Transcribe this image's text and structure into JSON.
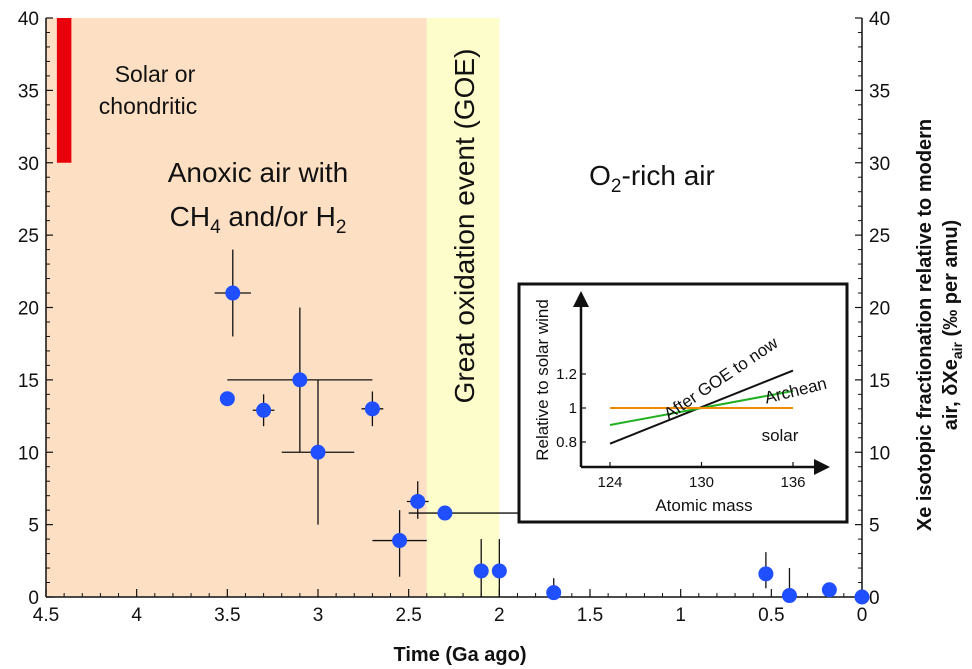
{
  "chart_data": {
    "type": "scatter",
    "title": "",
    "xlabel": "Time (Ga ago)",
    "ylabel_right_line1": "Xe isotopic fractionation relative to modern",
    "ylabel_right_line2_prefix": "air, δXe",
    "ylabel_right_line2_sub": "air",
    "ylabel_right_line2_suffix": " (‰ per amu)",
    "xlim": [
      4.5,
      0
    ],
    "ylim": [
      0,
      40
    ],
    "x_ticks": [
      "4.5",
      "4",
      "3.5",
      "3",
      "2.5",
      "2",
      "1.5",
      "1",
      "0.5",
      "0"
    ],
    "y_ticks": [
      "0",
      "5",
      "10",
      "15",
      "20",
      "25",
      "30",
      "35",
      "40"
    ],
    "regions": {
      "anoxic": {
        "x_from": 4.5,
        "x_to": 2.4,
        "color": "#fde0c4"
      },
      "goe": {
        "x_from": 2.4,
        "x_to": 2.0,
        "color": "#fdfccb"
      }
    },
    "labels": {
      "solar_line1": "Solar or",
      "solar_line2": "chondritic",
      "anoxic_line1": "Anoxic air with",
      "anoxic_line2_a": "CH",
      "anoxic_line2_sub1": "4",
      "anoxic_line2_b": " and/or H",
      "anoxic_line2_sub2": "2",
      "goe": "Great oxidation event (GOE)",
      "o2_a": "O",
      "o2_sub": "2",
      "o2_b": "-rich air"
    },
    "solar_bar": {
      "x_from": 4.44,
      "x_to": 4.36,
      "y_from": 30,
      "y_to": 40,
      "color": "#e8000b"
    },
    "marker_color": "#1f4fff",
    "points": [
      {
        "x": 3.47,
        "y": 21,
        "xerr": [
          3.57,
          3.37
        ],
        "yerr": [
          18,
          24
        ]
      },
      {
        "x": 3.5,
        "y": 13.7
      },
      {
        "x": 3.3,
        "y": 12.9,
        "xerr": [
          3.36,
          3.24
        ],
        "yerr": [
          11.8,
          14.0
        ]
      },
      {
        "x": 3.1,
        "y": 15,
        "xerr": [
          3.5,
          2.7
        ],
        "yerr": [
          10,
          20
        ]
      },
      {
        "x": 3.0,
        "y": 10,
        "xerr": [
          3.2,
          2.8
        ],
        "yerr": [
          5,
          15
        ]
      },
      {
        "x": 2.7,
        "y": 13,
        "xerr": [
          2.76,
          2.64
        ],
        "yerr": [
          11.8,
          14.2
        ]
      },
      {
        "x": 2.55,
        "y": 3.9,
        "xerr": [
          2.7,
          2.4
        ],
        "yerr": [
          1.4,
          6.0
        ]
      },
      {
        "x": 2.45,
        "y": 6.6,
        "xerr": [
          2.51,
          2.39
        ],
        "yerr": [
          5.4,
          8.0
        ]
      },
      {
        "x": 2.3,
        "y": 5.8,
        "xerr": [
          2.5,
          1.9
        ]
      },
      {
        "x": 2.1,
        "y": 1.8,
        "yerr": [
          0,
          4
        ]
      },
      {
        "x": 2.0,
        "y": 1.8,
        "yerr": [
          0,
          4
        ]
      },
      {
        "x": 1.7,
        "y": 0.3,
        "yerr": [
          0,
          1.3
        ]
      },
      {
        "x": 0.53,
        "y": 1.6,
        "yerr": [
          0.6,
          3.1
        ]
      },
      {
        "x": 0.4,
        "y": 0.1,
        "yerr": [
          0,
          2
        ]
      },
      {
        "x": 0.18,
        "y": 0.5,
        "yerr": [
          0,
          1.0
        ]
      },
      {
        "x": 0.0,
        "y": 0.0
      }
    ],
    "inset": {
      "ylabel": "Relative to solar wind",
      "xlabel": "Atomic mass",
      "x_ticks": [
        "124",
        "130",
        "136"
      ],
      "y_ticks": [
        "0.8",
        "1",
        "1.2"
      ],
      "xlim": [
        124,
        136
      ],
      "ylim": [
        0.8,
        1.2
      ],
      "series": [
        {
          "name": "After GOE to now",
          "color": "#111111",
          "values": [
            [
              124,
              0.79
            ],
            [
              136,
              1.22
            ]
          ]
        },
        {
          "name": "Archean",
          "color": "#22b022",
          "values": [
            [
              124,
              0.9
            ],
            [
              136,
              1.1
            ]
          ]
        },
        {
          "name": "solar",
          "color": "#f08a00",
          "values": [
            [
              124,
              1.0
            ],
            [
              136,
              1.0
            ]
          ]
        }
      ]
    }
  }
}
